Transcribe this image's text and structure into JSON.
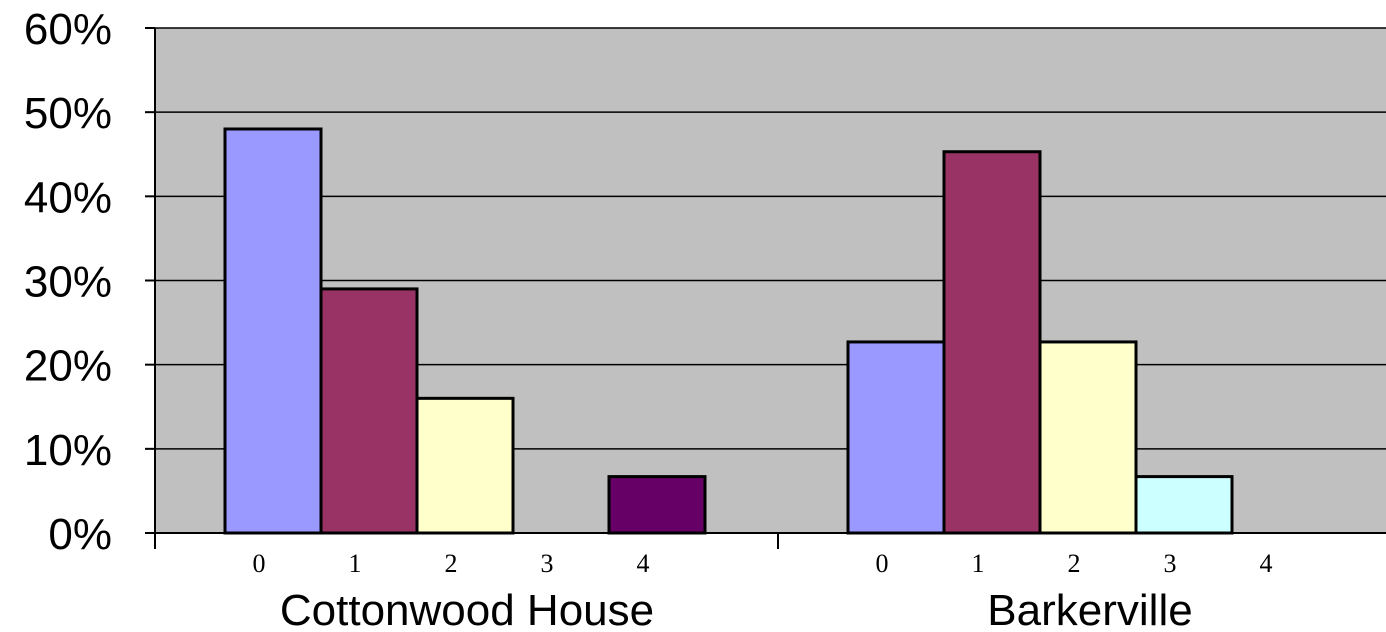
{
  "chart_data": {
    "type": "bar",
    "groups": [
      {
        "name": "Cottonwood House",
        "categories": [
          "0",
          "1",
          "2",
          "3",
          "4"
        ],
        "values": [
          48,
          29,
          16,
          0,
          6.7
        ]
      },
      {
        "name": "Barkerville",
        "categories": [
          "0",
          "1",
          "2",
          "3",
          "4"
        ],
        "values": [
          22.7,
          45.3,
          22.7,
          6.7,
          0
        ]
      }
    ],
    "category_colors": [
      "#9999ff",
      "#993366",
      "#ffffcc",
      "#ccffff",
      "#660066"
    ],
    "plot_background": "#c0c0c0",
    "ylim": [
      0,
      60
    ],
    "yticks": [
      "0%",
      "10%",
      "20%",
      "30%",
      "40%",
      "50%",
      "60%"
    ],
    "ytick_values": [
      0,
      10,
      20,
      30,
      40,
      50,
      60
    ],
    "grid": true,
    "xlabel": "",
    "ylabel": "",
    "title": ""
  }
}
